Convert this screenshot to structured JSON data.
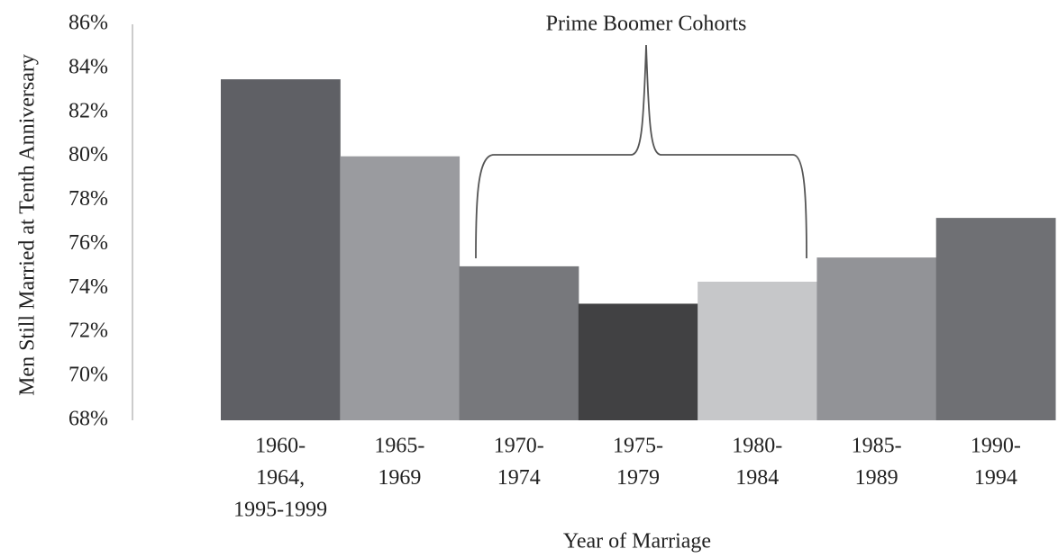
{
  "chart_data": {
    "type": "bar",
    "title": "Prime Boomer Cohorts",
    "y_axis_label": "Men Still Married at Tenth Anniversary",
    "x_axis_label": "Year of Marriage",
    "categories": [
      [
        "1960-",
        "1964,",
        "1995-1999"
      ],
      [
        "1965-",
        "1969"
      ],
      [
        "1970-",
        "1974"
      ],
      [
        "1975-",
        "1979"
      ],
      [
        "1980-",
        "1984"
      ],
      [
        "1985-",
        "1989"
      ],
      [
        "1990-",
        "1994"
      ]
    ],
    "values": [
      83.5,
      80.0,
      75.0,
      73.3,
      74.3,
      75.4,
      77.2
    ],
    "colors": [
      "#5f6065",
      "#9a9b9f",
      "#77787c",
      "#414143",
      "#c6c7c9",
      "#929397",
      "#6f7074"
    ],
    "ylim": [
      68,
      86
    ],
    "yticks": [
      {
        "value": 68,
        "label": "68%"
      },
      {
        "value": 70,
        "label": "70%"
      },
      {
        "value": 72,
        "label": "72%"
      },
      {
        "value": 74,
        "label": "74%"
      },
      {
        "value": 76,
        "label": "76%"
      },
      {
        "value": 78,
        "label": "78%"
      },
      {
        "value": 80,
        "label": "80%"
      },
      {
        "value": 82,
        "label": "82%"
      },
      {
        "value": 84,
        "label": "84%"
      },
      {
        "value": 86,
        "label": "86%"
      }
    ],
    "grid": false
  }
}
